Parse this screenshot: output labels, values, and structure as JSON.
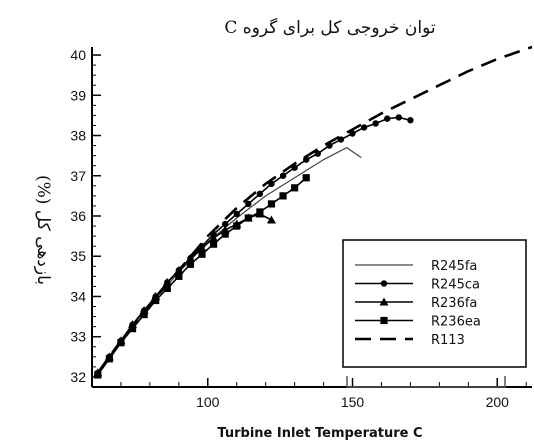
{
  "chart_data": {
    "type": "line",
    "title": "توان خروجی کل برای گروه C",
    "xlabel": "Turbine Inlet Temperature C",
    "ylabel": "بازدهی کل (%)",
    "xlim": [
      60,
      212
    ],
    "ylim": [
      31.75,
      40.2
    ],
    "xticks": [
      100,
      150,
      200
    ],
    "yticks": [
      32,
      33,
      34,
      35,
      36,
      37,
      38,
      39,
      40
    ],
    "grid": false,
    "legend_position": "bottom-right",
    "series": [
      {
        "name": "R245fa",
        "color": "#444444",
        "style": "thin",
        "marker": "none",
        "x": [
          62,
          70,
          80,
          90,
          100,
          110,
          120,
          130,
          140,
          148,
          153
        ],
        "y": [
          32.1,
          32.9,
          33.8,
          34.6,
          35.35,
          35.95,
          36.5,
          36.95,
          37.4,
          37.7,
          37.45
        ]
      },
      {
        "name": "R245ca",
        "color": "#000000",
        "style": "solid",
        "marker": "circle",
        "x": [
          62,
          66,
          70,
          74,
          78,
          82,
          86,
          90,
          94,
          98,
          102,
          106,
          110,
          114,
          118,
          122,
          126,
          130,
          134,
          138,
          142,
          146,
          150,
          154,
          158,
          162,
          166,
          170
        ],
        "y": [
          32.1,
          32.5,
          32.9,
          33.3,
          33.65,
          34.0,
          34.35,
          34.65,
          34.95,
          35.25,
          35.55,
          35.8,
          36.05,
          36.3,
          36.55,
          36.8,
          37.0,
          37.2,
          37.4,
          37.55,
          37.75,
          37.9,
          38.05,
          38.2,
          38.3,
          38.42,
          38.45,
          38.38
        ]
      },
      {
        "name": "R236fa",
        "color": "#000000",
        "style": "solid",
        "marker": "triangle",
        "x": [
          62,
          66,
          70,
          74,
          78,
          82,
          86,
          90,
          94,
          98,
          102,
          106,
          110,
          114,
          118,
          122
        ],
        "y": [
          32.1,
          32.5,
          32.9,
          33.3,
          33.65,
          34.0,
          34.35,
          34.65,
          34.95,
          35.2,
          35.45,
          35.65,
          35.8,
          35.95,
          36.05,
          35.9
        ]
      },
      {
        "name": "R236ea",
        "color": "#000000",
        "style": "solid",
        "marker": "square",
        "x": [
          62,
          66,
          70,
          74,
          78,
          82,
          86,
          90,
          94,
          98,
          102,
          106,
          110,
          114,
          118,
          122,
          126,
          130,
          134
        ],
        "y": [
          32.05,
          32.45,
          32.85,
          33.2,
          33.55,
          33.9,
          34.2,
          34.5,
          34.8,
          35.05,
          35.3,
          35.55,
          35.75,
          35.95,
          36.1,
          36.3,
          36.5,
          36.7,
          36.95
        ]
      },
      {
        "name": "R113",
        "color": "#000000",
        "style": "dashed",
        "marker": "none",
        "x": [
          62,
          70,
          80,
          90,
          100,
          110,
          120,
          130,
          140,
          150,
          160,
          170,
          180,
          190,
          200,
          212
        ],
        "y": [
          32.1,
          32.9,
          33.8,
          34.65,
          35.5,
          36.2,
          36.8,
          37.3,
          37.75,
          38.15,
          38.55,
          38.9,
          39.25,
          39.6,
          39.9,
          40.2
        ]
      }
    ]
  }
}
